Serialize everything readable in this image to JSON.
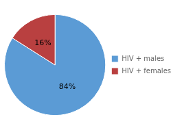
{
  "chart_data": {
    "type": "pie",
    "categories": [
      "HIV + males",
      "HIV + females"
    ],
    "values": [
      84,
      16
    ],
    "value_labels": [
      "84%",
      "16%"
    ],
    "colors": [
      "#5b9bd5",
      "#b94040"
    ],
    "data_labels": true,
    "legend": "right"
  }
}
